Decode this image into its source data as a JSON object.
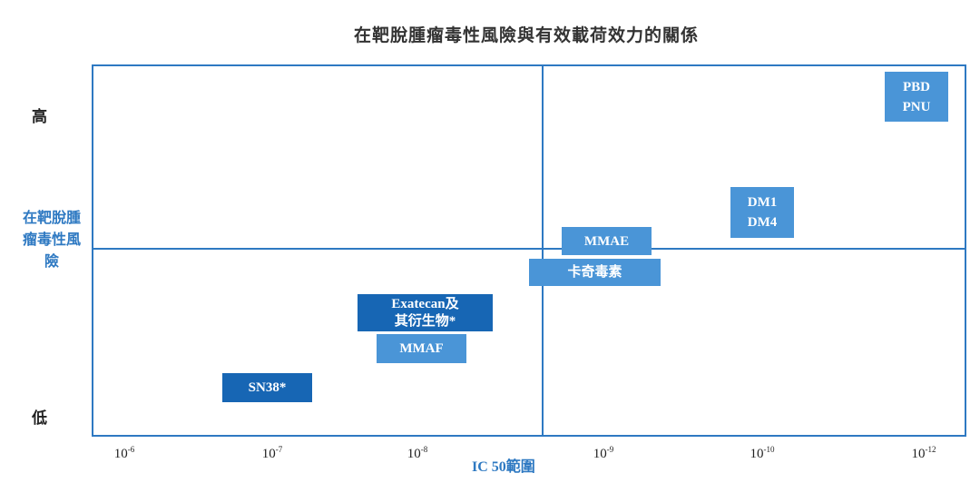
{
  "chart_data": {
    "type": "table",
    "title": "在靶脫腫瘤毒性風險與有效載荷效力的關係",
    "ylabel": "在靶脫腫瘤毒性風險",
    "y_ticks": [
      "高",
      "低"
    ],
    "xlabel": "IC 50範圍",
    "x_ticks": [
      {
        "base": "10",
        "exp": "-6"
      },
      {
        "base": "10",
        "exp": "-7"
      },
      {
        "base": "10",
        "exp": "-8"
      },
      {
        "base": "10",
        "exp": "-9"
      },
      {
        "base": "10",
        "exp": "-10"
      },
      {
        "base": "10",
        "exp": "-12"
      }
    ],
    "items": [
      {
        "lines": [
          "PBD",
          "PNU"
        ],
        "ic50_range": [
          "1e-11",
          "1e-12"
        ],
        "toxicity_risk": "高"
      },
      {
        "lines": [
          "DM1",
          "DM4"
        ],
        "ic50_range": [
          "1e-10"
        ],
        "toxicity_risk": "高"
      },
      {
        "lines": [
          "MMAE"
        ],
        "ic50_range": [
          "1e-9"
        ],
        "toxicity_risk": "中"
      },
      {
        "lines": [
          "卡奇毒素"
        ],
        "ic50_range": [
          "1e-9"
        ],
        "toxicity_risk": "中"
      },
      {
        "lines": [
          "Exatecan及",
          "其衍生物*"
        ],
        "ic50_range": [
          "1e-8"
        ],
        "toxicity_risk": "低"
      },
      {
        "lines": [
          "MMAF"
        ],
        "ic50_range": [
          "1e-8"
        ],
        "toxicity_risk": "低"
      },
      {
        "lines": [
          "SN38*"
        ],
        "ic50_range": [
          "1e-7"
        ],
        "toxicity_risk": "低"
      }
    ]
  },
  "colors": {
    "axis": "#2e79c2",
    "box_dark": "#1766b4",
    "box_light": "#4a95d7"
  }
}
